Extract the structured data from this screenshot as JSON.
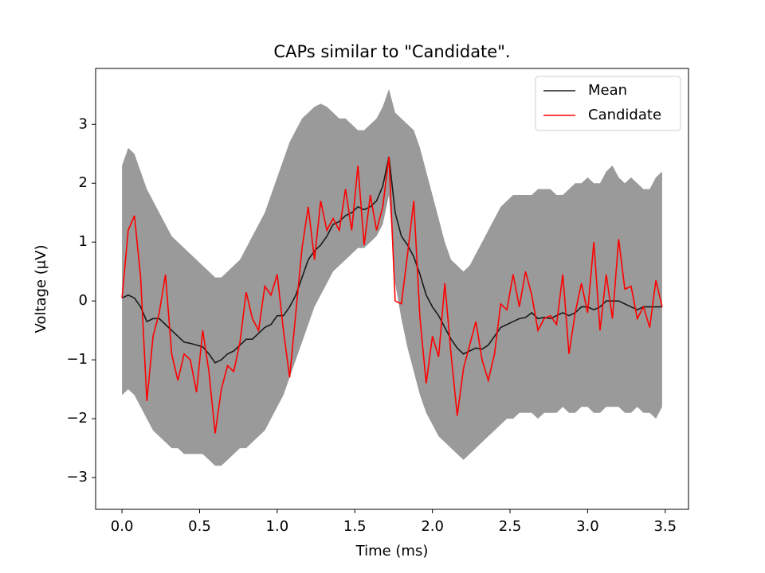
{
  "chart_data": {
    "type": "line",
    "title": "CAPs similar to \"Candidate\".",
    "xlabel": "Time (ms)",
    "ylabel": "Voltage (μV)",
    "x": [
      0,
      0.04,
      0.08,
      0.12,
      0.16,
      0.2,
      0.24,
      0.28,
      0.32,
      0.36,
      0.4,
      0.44,
      0.48,
      0.52,
      0.56,
      0.6,
      0.64,
      0.68,
      0.72,
      0.76,
      0.8,
      0.84,
      0.88,
      0.92,
      0.96,
      1.0,
      1.04,
      1.08,
      1.12,
      1.16,
      1.2,
      1.24,
      1.28,
      1.32,
      1.36,
      1.4,
      1.44,
      1.48,
      1.52,
      1.56,
      1.6,
      1.64,
      1.68,
      1.72,
      1.76,
      1.8,
      1.84,
      1.88,
      1.92,
      1.96,
      2.0,
      2.04,
      2.08,
      2.12,
      2.16,
      2.2,
      2.24,
      2.28,
      2.32,
      2.36,
      2.4,
      2.44,
      2.48,
      2.52,
      2.56,
      2.6,
      2.64,
      2.68,
      2.72,
      2.76,
      2.8,
      2.84,
      2.88,
      2.92,
      2.96,
      3.0,
      3.04,
      3.08,
      3.12,
      3.16,
      3.2,
      3.24,
      3.28,
      3.32,
      3.36,
      3.4,
      3.44,
      3.48
    ],
    "band": {
      "color": "#9a9a9a",
      "upper": [
        2.3,
        2.6,
        2.5,
        2.2,
        1.9,
        1.7,
        1.5,
        1.3,
        1.1,
        1.0,
        0.9,
        0.8,
        0.7,
        0.6,
        0.5,
        0.4,
        0.4,
        0.5,
        0.6,
        0.7,
        0.9,
        1.1,
        1.3,
        1.5,
        1.8,
        2.1,
        2.4,
        2.7,
        2.9,
        3.1,
        3.2,
        3.3,
        3.35,
        3.3,
        3.2,
        3.1,
        3.1,
        3.0,
        2.9,
        2.9,
        3.0,
        3.1,
        3.3,
        3.6,
        3.2,
        3.1,
        3.0,
        2.9,
        2.6,
        2.2,
        1.8,
        1.4,
        1.0,
        0.7,
        0.6,
        0.5,
        0.6,
        0.8,
        1.0,
        1.2,
        1.4,
        1.6,
        1.7,
        1.8,
        1.8,
        1.8,
        1.8,
        1.9,
        1.9,
        1.9,
        1.8,
        1.8,
        1.9,
        2.0,
        2.0,
        2.1,
        2.0,
        2.0,
        2.2,
        2.3,
        2.1,
        2.0,
        2.1,
        2.0,
        1.9,
        1.9,
        2.1,
        2.2
      ],
      "lower": [
        -1.6,
        -1.5,
        -1.6,
        -1.8,
        -2.0,
        -2.2,
        -2.3,
        -2.4,
        -2.5,
        -2.5,
        -2.6,
        -2.6,
        -2.6,
        -2.6,
        -2.7,
        -2.8,
        -2.8,
        -2.7,
        -2.6,
        -2.5,
        -2.5,
        -2.4,
        -2.3,
        -2.2,
        -2.0,
        -1.8,
        -1.6,
        -1.3,
        -1.0,
        -0.7,
        -0.4,
        -0.1,
        0.1,
        0.3,
        0.5,
        0.6,
        0.7,
        0.8,
        0.9,
        0.9,
        1.0,
        1.1,
        1.3,
        1.8,
        0.3,
        -0.3,
        -0.8,
        -1.2,
        -1.6,
        -1.9,
        -2.1,
        -2.3,
        -2.4,
        -2.5,
        -2.6,
        -2.7,
        -2.6,
        -2.5,
        -2.4,
        -2.3,
        -2.2,
        -2.1,
        -2.0,
        -2.0,
        -1.9,
        -1.9,
        -1.9,
        -2.0,
        -1.9,
        -1.9,
        -1.9,
        -1.8,
        -1.9,
        -1.9,
        -1.8,
        -1.8,
        -1.9,
        -1.9,
        -1.8,
        -1.8,
        -1.8,
        -1.9,
        -1.9,
        -1.8,
        -1.9,
        -1.9,
        -2.0,
        -1.8
      ]
    },
    "series": [
      {
        "name": "Mean",
        "color": "#1a1a1a",
        "values": [
          0.05,
          0.1,
          0.05,
          -0.1,
          -0.35,
          -0.3,
          -0.3,
          -0.4,
          -0.5,
          -0.6,
          -0.7,
          -0.72,
          -0.75,
          -0.78,
          -0.9,
          -1.05,
          -1.0,
          -0.9,
          -0.85,
          -0.75,
          -0.65,
          -0.65,
          -0.55,
          -0.45,
          -0.4,
          -0.25,
          -0.25,
          -0.1,
          0.1,
          0.4,
          0.7,
          0.85,
          0.95,
          1.1,
          1.3,
          1.35,
          1.45,
          1.5,
          1.6,
          1.55,
          1.6,
          1.7,
          1.95,
          2.45,
          1.5,
          1.1,
          0.95,
          0.75,
          0.45,
          0.1,
          -0.1,
          -0.25,
          -0.45,
          -0.65,
          -0.8,
          -0.9,
          -0.85,
          -0.8,
          -0.82,
          -0.75,
          -0.6,
          -0.45,
          -0.4,
          -0.35,
          -0.3,
          -0.28,
          -0.2,
          -0.3,
          -0.28,
          -0.3,
          -0.25,
          -0.2,
          -0.25,
          -0.2,
          -0.1,
          -0.1,
          -0.15,
          -0.1,
          0.0,
          0.0,
          0.0,
          -0.05,
          -0.1,
          -0.15,
          -0.1,
          -0.1,
          -0.1,
          -0.1
        ]
      },
      {
        "name": "Candidate",
        "color": "#ff0000",
        "values": [
          0.05,
          1.2,
          1.45,
          0.4,
          -1.7,
          -0.6,
          -0.2,
          0.45,
          -0.9,
          -1.35,
          -0.9,
          -1.0,
          -1.55,
          -0.5,
          -1.2,
          -2.25,
          -1.5,
          -1.1,
          -1.2,
          -0.7,
          0.15,
          -0.3,
          -0.5,
          0.25,
          0.1,
          0.45,
          -0.5,
          -1.3,
          -0.2,
          0.9,
          1.6,
          0.7,
          1.7,
          1.2,
          1.4,
          1.2,
          1.9,
          1.2,
          2.3,
          0.95,
          1.8,
          1.2,
          1.6,
          2.45,
          0.0,
          -0.05,
          0.8,
          1.7,
          -0.3,
          -1.4,
          -0.6,
          -0.95,
          0.3,
          -0.9,
          -1.95,
          -1.15,
          -0.75,
          -0.35,
          -1.0,
          -1.35,
          -0.9,
          -0.05,
          -0.15,
          0.45,
          -0.1,
          0.5,
          0.1,
          -0.5,
          -0.3,
          -0.25,
          -0.4,
          0.45,
          -0.9,
          -0.2,
          0.3,
          -0.2,
          1.0,
          -0.5,
          0.45,
          -0.3,
          1.05,
          0.2,
          0.25,
          -0.3,
          -0.1,
          -0.45,
          0.35,
          -0.1
        ]
      }
    ],
    "xlim": [
      -0.17,
      3.65
    ],
    "ylim": [
      -3.54,
      3.95
    ],
    "xticks": [
      {
        "value": 0,
        "label": "0.0"
      },
      {
        "value": 0.5,
        "label": "0.5"
      },
      {
        "value": 1,
        "label": "1.0"
      },
      {
        "value": 1.5,
        "label": "1.5"
      },
      {
        "value": 2,
        "label": "2.0"
      },
      {
        "value": 2.5,
        "label": "2.5"
      },
      {
        "value": 3,
        "label": "3.0"
      },
      {
        "value": 3.5,
        "label": "3.5"
      }
    ],
    "yticks": [
      {
        "value": -3,
        "label": "−3"
      },
      {
        "value": -2,
        "label": "−2"
      },
      {
        "value": -1,
        "label": "−1"
      },
      0,
      1,
      2,
      3
    ],
    "legend": "upper right",
    "grid": false
  }
}
